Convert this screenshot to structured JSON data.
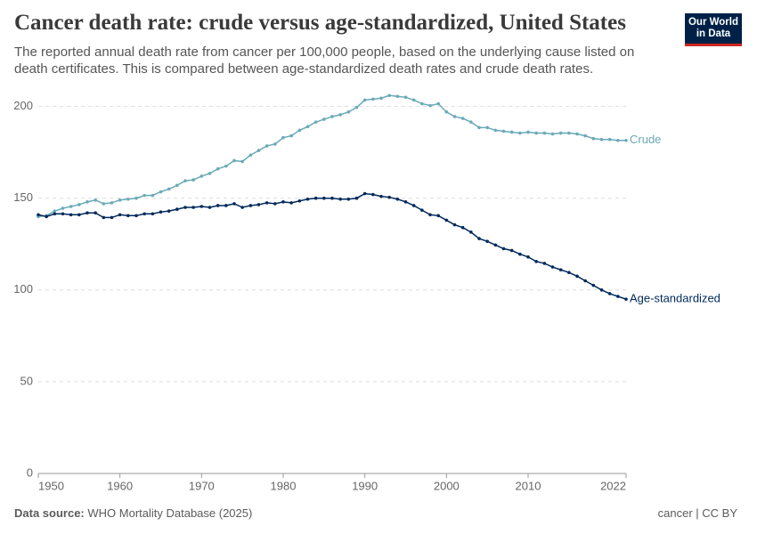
{
  "chart_data": {
    "type": "line",
    "title": "Cancer death rate: crude versus age-standardized, United States",
    "subtitle": "The reported annual death rate from cancer per 100,000 people, based on the underlying cause listed on death certificates. This is compared between age-standardized death rates and crude death rates.",
    "logo": [
      "Our World",
      "in Data"
    ],
    "source_label": "Data source:",
    "source": "WHO Mortality Database (2025)",
    "license": "cancer | CC BY",
    "x": [
      1950,
      1951,
      1952,
      1953,
      1954,
      1955,
      1956,
      1957,
      1958,
      1959,
      1960,
      1961,
      1962,
      1963,
      1964,
      1965,
      1966,
      1967,
      1968,
      1969,
      1970,
      1971,
      1972,
      1973,
      1974,
      1975,
      1976,
      1977,
      1978,
      1979,
      1980,
      1981,
      1982,
      1983,
      1984,
      1985,
      1986,
      1987,
      1988,
      1989,
      1990,
      1991,
      1992,
      1993,
      1994,
      1995,
      1996,
      1997,
      1998,
      1999,
      2000,
      2001,
      2002,
      2003,
      2004,
      2005,
      2006,
      2007,
      2008,
      2009,
      2010,
      2011,
      2012,
      2013,
      2014,
      2015,
      2016,
      2017,
      2018,
      2019,
      2020,
      2021,
      2022
    ],
    "series": [
      {
        "name": "Crude",
        "color": "#6aaab7",
        "values": [
          140,
          140.5,
          143,
          144.5,
          145.5,
          146.5,
          148,
          149,
          147,
          147.5,
          149,
          149.5,
          150,
          151.5,
          151.5,
          153.5,
          155,
          157,
          159.5,
          160,
          162,
          163.5,
          166,
          167.5,
          170.5,
          170,
          173.5,
          176,
          178.5,
          179.5,
          183,
          184,
          187,
          189,
          191.5,
          193,
          194.5,
          195.5,
          197,
          199.5,
          203.5,
          204,
          204.5,
          206,
          205.5,
          205,
          203.5,
          201.5,
          200.5,
          201.5,
          197,
          194.5,
          193.5,
          191.5,
          188.5,
          188.5,
          187,
          186.5,
          186,
          185.5,
          186,
          185.5,
          185.5,
          185,
          185.5,
          185.5,
          185,
          184,
          182.5,
          182,
          182,
          181.5,
          181.5
        ]
      },
      {
        "name": "Age-standardized",
        "color": "#00295b",
        "values": [
          141,
          140,
          141.5,
          141.5,
          141,
          141,
          142,
          142,
          139.5,
          139.5,
          141,
          140.5,
          140.5,
          141.5,
          141.5,
          142.5,
          143,
          144,
          145,
          145,
          145.5,
          145,
          146,
          146,
          147,
          145,
          146,
          146.5,
          147.5,
          147,
          148,
          147.5,
          148.5,
          149.5,
          150,
          150,
          150,
          149.5,
          149.5,
          150,
          152.5,
          152,
          151,
          150.5,
          149.5,
          148,
          146,
          143.5,
          141,
          140.5,
          138,
          135.5,
          134,
          131.5,
          128,
          126.5,
          124.5,
          122.5,
          121.5,
          119.5,
          118,
          115.5,
          114.5,
          112.5,
          111,
          109.5,
          107.5,
          105,
          102.5,
          100,
          98,
          96.5,
          95
        ]
      }
    ],
    "xlim": [
      1950,
      2022
    ],
    "xticks": [
      1950,
      1960,
      1970,
      1980,
      1990,
      2000,
      2010,
      2022
    ],
    "ylim": [
      0,
      210
    ],
    "yticks": [
      0,
      50,
      100,
      150,
      200
    ],
    "grid": true
  }
}
